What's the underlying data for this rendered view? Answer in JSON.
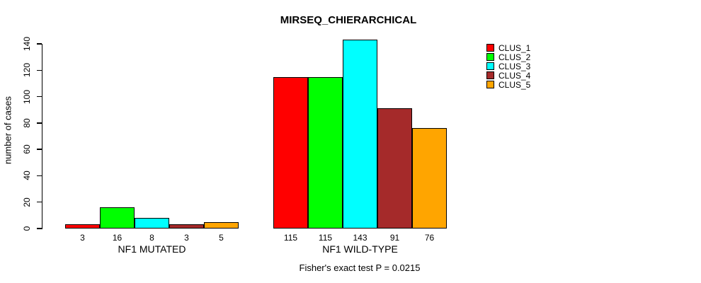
{
  "chart_data": {
    "type": "bar",
    "title": "MIRSEQ_CHIERARCHICAL",
    "ylabel": "number of cases",
    "xlabel": "",
    "ylim": [
      0,
      140
    ],
    "ytick_step": 20,
    "yticks": [
      0,
      20,
      40,
      60,
      80,
      100,
      120,
      140
    ],
    "grid": false,
    "legend_position": "right",
    "categories": [
      "NF1 MUTATED",
      "NF1 WILD-TYPE"
    ],
    "series": [
      {
        "name": "CLUS_1",
        "color": "#FF0000",
        "values": [
          3,
          115
        ]
      },
      {
        "name": "CLUS_2",
        "color": "#00FF00",
        "values": [
          16,
          115
        ]
      },
      {
        "name": "CLUS_3",
        "color": "#00FFFF",
        "values": [
          8,
          143
        ]
      },
      {
        "name": "CLUS_4",
        "color": "#A52A2A",
        "values": [
          3,
          91
        ]
      },
      {
        "name": "CLUS_5",
        "color": "#FFA500",
        "values": [
          5,
          76
        ]
      }
    ],
    "groups": [
      {
        "label": "NF1 MUTATED",
        "values": [
          3,
          16,
          8,
          3,
          5
        ],
        "value_labels": [
          "3",
          "16",
          "8",
          "3",
          "5"
        ]
      },
      {
        "label": "NF1 WILD-TYPE",
        "values": [
          115,
          115,
          143,
          91,
          76
        ],
        "value_labels": [
          "115",
          "115",
          "143",
          "91",
          "76"
        ]
      }
    ],
    "legend": [
      {
        "label": "CLUS_1",
        "color": "#FF0000"
      },
      {
        "label": "CLUS_2",
        "color": "#00FF00"
      },
      {
        "label": "CLUS_3",
        "color": "#00FFFF"
      },
      {
        "label": "CLUS_4",
        "color": "#A52A2A"
      },
      {
        "label": "CLUS_5",
        "color": "#FFA500"
      }
    ],
    "footnote": "Fisher's exact test P = 0.0215",
    "bar_border_color": "#000000",
    "axis_color": "#000000"
  }
}
